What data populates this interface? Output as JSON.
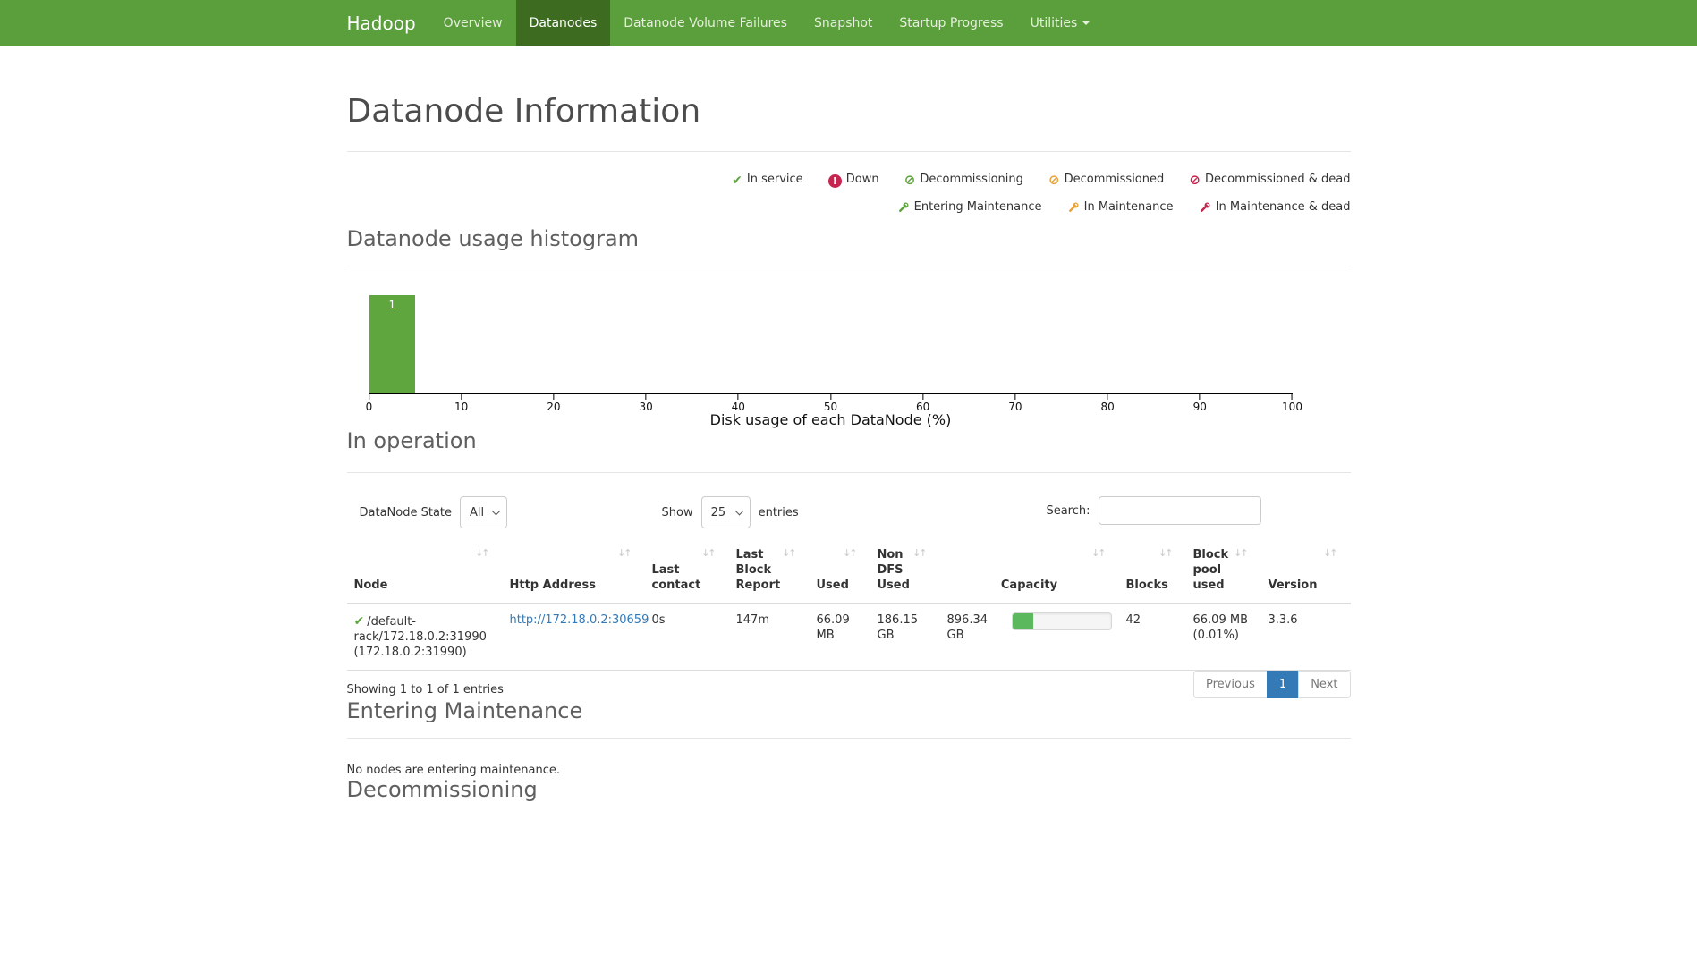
{
  "navbar": {
    "brand": "Hadoop",
    "items": [
      {
        "label": "Overview",
        "active": false
      },
      {
        "label": "Datanodes",
        "active": true
      },
      {
        "label": "Datanode Volume Failures",
        "active": false
      },
      {
        "label": "Snapshot",
        "active": false
      },
      {
        "label": "Startup Progress",
        "active": false
      },
      {
        "label": "Utilities",
        "active": false,
        "dropdown": true
      }
    ]
  },
  "page": {
    "title": "Datanode Information"
  },
  "legend": {
    "row1": [
      {
        "icon": "check-icon",
        "label": "In service",
        "color": "#5fa33c"
      },
      {
        "icon": "exclamation-circle-icon",
        "label": "Down",
        "color": "#c7254e"
      },
      {
        "icon": "ban-icon",
        "label": "Decommissioning",
        "color": "#5fa33c"
      },
      {
        "icon": "ban-icon",
        "label": "Decommissioned",
        "color": "#eca23c"
      },
      {
        "icon": "ban-icon",
        "label": "Decommissioned & dead",
        "color": "#c7254e"
      }
    ],
    "row2": [
      {
        "icon": "wrench-icon",
        "label": "Entering Maintenance",
        "color": "#5fa33c"
      },
      {
        "icon": "wrench-icon",
        "label": "In Maintenance",
        "color": "#eca23c"
      },
      {
        "icon": "wrench-icon",
        "label": "In Maintenance & dead",
        "color": "#c7254e"
      }
    ]
  },
  "histogram": {
    "section_title": "Datanode usage histogram"
  },
  "chart_data": {
    "type": "bar",
    "title": "Datanode usage histogram",
    "xlabel": "Disk usage of each DataNode (%)",
    "ylabel": "",
    "xlim": [
      0,
      100
    ],
    "xticks": [
      "0",
      "10",
      "20",
      "30",
      "40",
      "50",
      "60",
      "70",
      "80",
      "90",
      "100"
    ],
    "bins": [
      {
        "x0": 0,
        "x1": 5,
        "count": 1
      }
    ],
    "bar_label": "1",
    "bar_width_percent": 5,
    "bar_color": "#60a63e",
    "grid": false,
    "legend_position": "none"
  },
  "in_operation": {
    "section_title": "In operation",
    "controls": {
      "state_label": "DataNode State",
      "state_value": "All",
      "show_label": "Show",
      "show_value": "25",
      "entries_label": "entries",
      "search_label": "Search:",
      "search_value": ""
    },
    "table": {
      "headers": [
        "Node",
        "Http Address",
        "Last contact",
        "Last Block Report",
        "Used",
        "Non DFS Used",
        "Capacity",
        "Blocks",
        "Block pool used",
        "Version"
      ],
      "row": {
        "node": "/default-rack/172.18.0.2:31990 (172.18.0.2:31990)",
        "http_address": "http://172.18.0.2:30659",
        "last_contact": "0s",
        "last_block_report": "147m",
        "used": "66.09 MB",
        "non_dfs_used": "186.15 GB",
        "capacity": "896.34 GB",
        "capacity_used_percent": 21,
        "blocks": "42",
        "block_pool_used": "66.09 MB (0.01%)",
        "version": "3.3.6"
      },
      "info": "Showing 1 to 1 of 1 entries",
      "pagination": {
        "previous": "Previous",
        "page": "1",
        "next": "Next"
      }
    }
  },
  "entering_maintenance": {
    "section_title": "Entering Maintenance",
    "empty_text": "No nodes are entering maintenance."
  },
  "decommissioning": {
    "section_title": "Decommissioning"
  },
  "colors": {
    "navbar_bg": "#5b9e3c",
    "navbar_active_bg": "#3d6c21",
    "link": "#337ab7",
    "pagination_active_bg": "#337ab7",
    "histogram_bar": "#60a63e",
    "progress_fill": "#5cb85c",
    "status_green": "#5fa33c",
    "status_orange": "#eca23c",
    "status_red": "#c7254e"
  }
}
